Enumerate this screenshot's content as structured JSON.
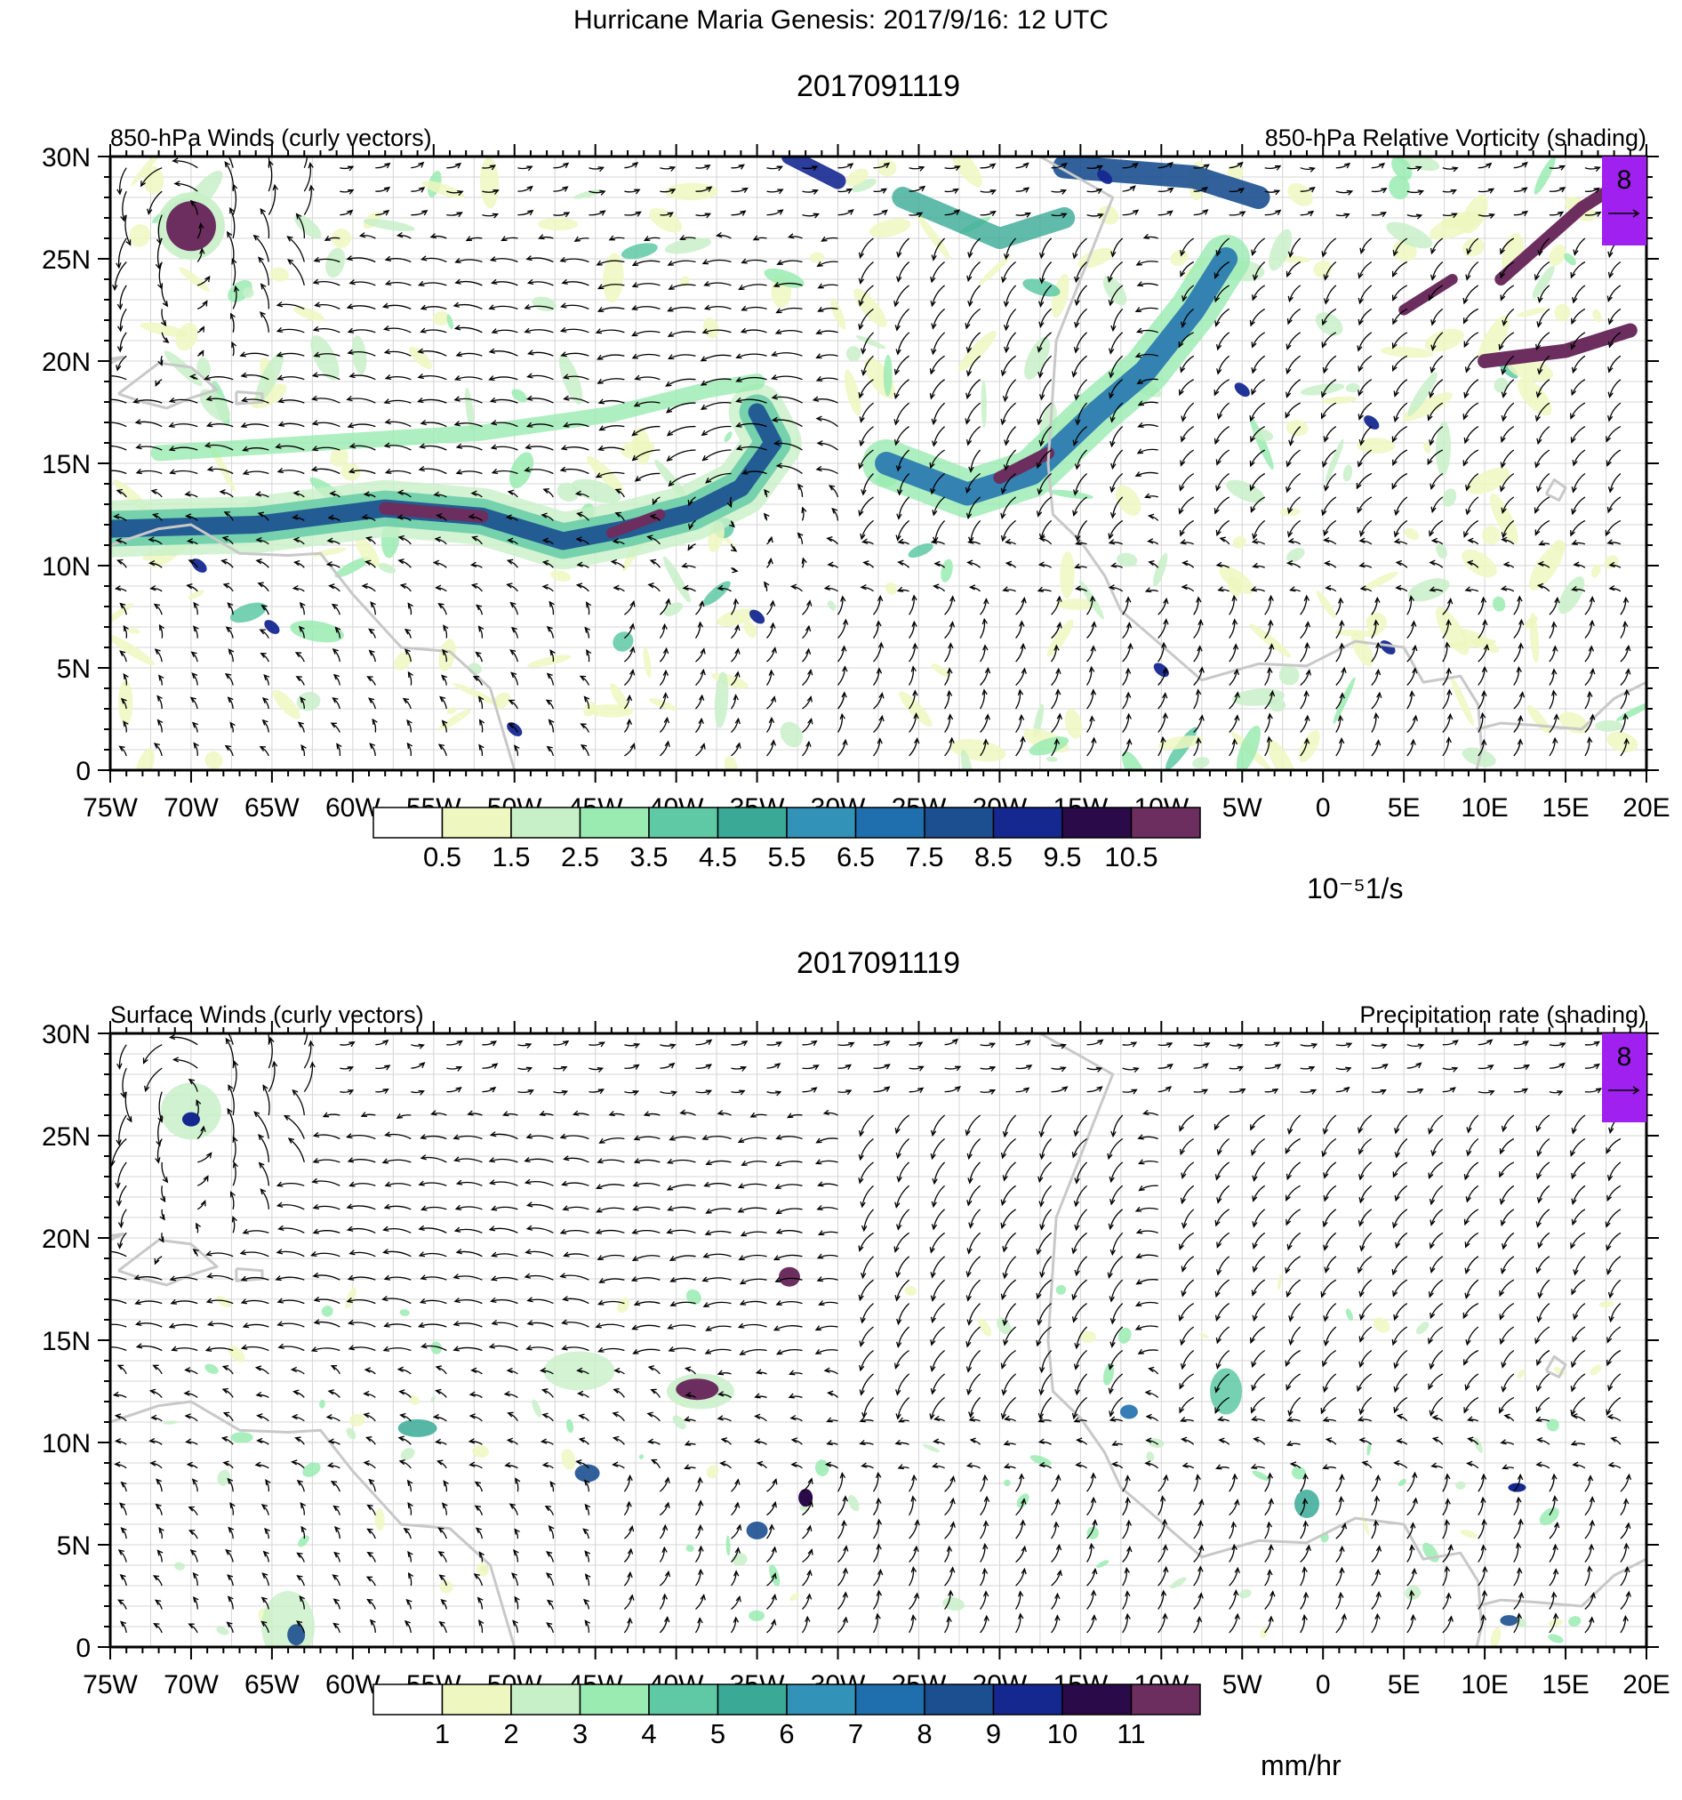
{
  "figure": {
    "main_title": "Hurricane Maria Genesis: 2017/9/16: 12 UTC"
  },
  "panels": [
    {
      "id": "vorticity",
      "title": "2017091119",
      "left_label": "850-hPa Winds (curly vectors)",
      "right_label": "850-hPa Relative Vorticity (shading)",
      "ref_vector_label": "8",
      "colorbar": {
        "labels": [
          "0.5",
          "1.5",
          "2.5",
          "3.5",
          "4.5",
          "5.5",
          "6.5",
          "7.5",
          "8.5",
          "9.5",
          "10.5"
        ],
        "units": "10⁻⁵1/s"
      }
    },
    {
      "id": "precip",
      "title": "2017091119",
      "left_label": "Surface Winds (curly vectors)",
      "right_label": "Precipitation rate (shading)",
      "ref_vector_label": "8",
      "colorbar": {
        "labels": [
          "1",
          "2",
          "3",
          "4",
          "5",
          "6",
          "7",
          "8",
          "9",
          "10",
          "11"
        ],
        "units": "mm/hr"
      }
    }
  ],
  "axes": {
    "lon_ticks": [
      "75W",
      "70W",
      "65W",
      "60W",
      "55W",
      "50W",
      "45W",
      "40W",
      "35W",
      "30W",
      "25W",
      "20W",
      "15W",
      "10W",
      "5W",
      "0",
      "5E",
      "10E",
      "15E",
      "20E"
    ],
    "lat_ticks": [
      "0",
      "5N",
      "10N",
      "15N",
      "20N",
      "25N",
      "30N"
    ],
    "lon_range": [
      -75,
      20
    ],
    "lat_range": [
      0,
      30
    ]
  },
  "palette": [
    "#ffffff",
    "#eef7c0",
    "#c8f0c8",
    "#9aebb2",
    "#5ec9a4",
    "#3aaa96",
    "#3292b8",
    "#1f6fae",
    "#1b4f8f",
    "#152890",
    "#2a0a48",
    "#6b2e5e"
  ],
  "colors": {
    "ref_box": "#a020f0",
    "coastline": "#c8c8c8",
    "grid": "#d4d4d4"
  }
}
